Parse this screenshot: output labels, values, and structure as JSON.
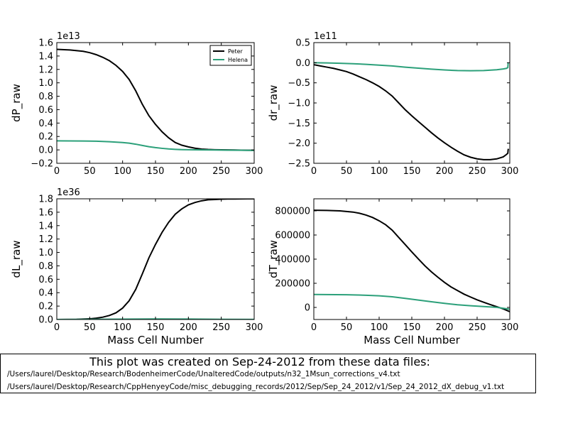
{
  "colors": {
    "peter": "#000000",
    "helena": "#2ca07a"
  },
  "chart_data": [
    {
      "type": "line",
      "ylabel": "dP_raw",
      "xlabel": "",
      "offset_text": "1e13",
      "xlim": [
        0,
        300
      ],
      "ylim": [
        -0.2,
        1.6
      ],
      "xticks": [
        "0",
        "50",
        "100",
        "150",
        "200",
        "250",
        "300"
      ],
      "yticks": [
        "−0.2",
        "0.0",
        "0.2",
        "0.4",
        "0.6",
        "0.8",
        "1.0",
        "1.2",
        "1.4",
        "1.6"
      ],
      "ytick_values": [
        -0.2,
        0.0,
        0.2,
        0.4,
        0.6,
        0.8,
        1.0,
        1.2,
        1.4,
        1.6
      ],
      "legend": {
        "position": "top-right",
        "entries": [
          "Peter",
          "Helena"
        ]
      },
      "series": [
        {
          "name": "Peter",
          "color": "#000000",
          "x": [
            0,
            20,
            40,
            50,
            60,
            70,
            80,
            90,
            100,
            110,
            120,
            130,
            140,
            150,
            160,
            170,
            180,
            190,
            200,
            210,
            220,
            230,
            240,
            250,
            260,
            270,
            280,
            290,
            300
          ],
          "y": [
            1.5,
            1.49,
            1.47,
            1.45,
            1.42,
            1.38,
            1.33,
            1.26,
            1.17,
            1.05,
            0.88,
            0.68,
            0.51,
            0.38,
            0.27,
            0.18,
            0.11,
            0.07,
            0.045,
            0.025,
            0.012,
            0.006,
            0.003,
            0.001,
            0.0,
            -0.002,
            -0.004,
            -0.005,
            -0.006
          ]
        },
        {
          "name": "Helena",
          "color": "#2ca07a",
          "x": [
            0,
            20,
            40,
            60,
            80,
            100,
            110,
            120,
            130,
            140,
            150,
            160,
            170,
            180,
            190,
            200,
            220,
            240,
            260,
            280,
            300
          ],
          "y": [
            0.135,
            0.134,
            0.132,
            0.129,
            0.122,
            0.11,
            0.1,
            0.085,
            0.066,
            0.048,
            0.034,
            0.023,
            0.014,
            0.008,
            0.004,
            0.002,
            0.0,
            -0.002,
            -0.004,
            -0.006,
            -0.008
          ]
        }
      ]
    },
    {
      "type": "line",
      "ylabel": "dr_raw",
      "xlabel": "",
      "offset_text": "1e11",
      "xlim": [
        0,
        300
      ],
      "ylim": [
        -2.5,
        0.5
      ],
      "xticks": [
        "0",
        "50",
        "100",
        "150",
        "200",
        "250",
        "300"
      ],
      "yticks": [
        "−2.5",
        "−2.0",
        "−1.5",
        "−1.0",
        "−0.5",
        "0.0",
        "0.5"
      ],
      "ytick_values": [
        -2.5,
        -2.0,
        -1.5,
        -1.0,
        -0.5,
        0.0,
        0.5
      ],
      "series": [
        {
          "name": "",
          "color": "#000000",
          "x": [
            0,
            10,
            20,
            30,
            40,
            50,
            60,
            70,
            80,
            90,
            100,
            110,
            120,
            130,
            140,
            150,
            160,
            170,
            180,
            190,
            200,
            210,
            220,
            230,
            240,
            250,
            260,
            270,
            280,
            290,
            295,
            297,
            297.5,
            298
          ],
          "y": [
            -0.05,
            -0.08,
            -0.11,
            -0.14,
            -0.18,
            -0.22,
            -0.28,
            -0.35,
            -0.42,
            -0.5,
            -0.59,
            -0.7,
            -0.83,
            -1.0,
            -1.17,
            -1.32,
            -1.46,
            -1.6,
            -1.74,
            -1.87,
            -1.99,
            -2.1,
            -2.2,
            -2.29,
            -2.35,
            -2.39,
            -2.41,
            -2.41,
            -2.39,
            -2.34,
            -2.28,
            -2.25,
            -2.16,
            -2.14
          ]
        },
        {
          "name": "",
          "color": "#2ca07a",
          "x": [
            0,
            20,
            40,
            60,
            80,
            100,
            120,
            140,
            160,
            180,
            200,
            220,
            240,
            260,
            280,
            290,
            295,
            297,
            297.5
          ],
          "y": [
            0.0,
            -0.005,
            -0.015,
            -0.025,
            -0.04,
            -0.06,
            -0.08,
            -0.11,
            -0.135,
            -0.16,
            -0.18,
            -0.195,
            -0.2,
            -0.195,
            -0.175,
            -0.155,
            -0.14,
            -0.12,
            0.0
          ]
        }
      ]
    },
    {
      "type": "line",
      "ylabel": "dL_raw",
      "xlabel": "Mass Cell Number",
      "offset_text": "1e36",
      "xlim": [
        0,
        300
      ],
      "ylim": [
        0.0,
        1.8
      ],
      "xticks": [
        "0",
        "50",
        "100",
        "150",
        "200",
        "250",
        "300"
      ],
      "yticks": [
        "0.0",
        "0.2",
        "0.4",
        "0.6",
        "0.8",
        "1.0",
        "1.2",
        "1.4",
        "1.6",
        "1.8"
      ],
      "ytick_values": [
        0.0,
        0.2,
        0.4,
        0.6,
        0.8,
        1.0,
        1.2,
        1.4,
        1.6,
        1.8
      ],
      "series": [
        {
          "name": "",
          "color": "#000000",
          "x": [
            0,
            30,
            50,
            60,
            70,
            80,
            90,
            100,
            110,
            120,
            130,
            140,
            150,
            160,
            170,
            180,
            190,
            200,
            210,
            220,
            230,
            240,
            250,
            260,
            270,
            280,
            290,
            300
          ],
          "y": [
            0.0,
            0.003,
            0.01,
            0.02,
            0.035,
            0.06,
            0.1,
            0.17,
            0.28,
            0.45,
            0.68,
            0.92,
            1.12,
            1.3,
            1.45,
            1.57,
            1.65,
            1.71,
            1.745,
            1.77,
            1.785,
            1.79,
            1.795,
            1.797,
            1.798,
            1.799,
            1.8,
            1.8
          ]
        },
        {
          "name": "",
          "color": "#2ca07a",
          "x": [
            0,
            50,
            100,
            150,
            200,
            250,
            300
          ],
          "y": [
            0.0,
            0.002,
            0.005,
            0.008,
            0.006,
            0.003,
            0.001
          ]
        }
      ]
    },
    {
      "type": "line",
      "ylabel": "dT_raw",
      "xlabel": "Mass Cell Number",
      "offset_text": "",
      "xlim": [
        0,
        300
      ],
      "ylim": [
        -100000,
        900000
      ],
      "xticks": [
        "0",
        "50",
        "100",
        "150",
        "200",
        "250",
        "300"
      ],
      "yticks": [
        "0",
        "200000",
        "400000",
        "600000",
        "800000"
      ],
      "ytick_values": [
        0,
        200000,
        400000,
        600000,
        800000
      ],
      "series": [
        {
          "name": "",
          "color": "#000000",
          "x": [
            0,
            20,
            40,
            60,
            70,
            80,
            90,
            100,
            110,
            120,
            130,
            140,
            150,
            160,
            170,
            180,
            190,
            200,
            210,
            220,
            230,
            240,
            250,
            260,
            270,
            280,
            290,
            300
          ],
          "y": [
            805000,
            804000,
            800000,
            790000,
            780000,
            765000,
            745000,
            718000,
            685000,
            640000,
            580000,
            520000,
            460000,
            402000,
            345000,
            295000,
            250000,
            208000,
            170000,
            140000,
            110000,
            86000,
            63000,
            43000,
            24000,
            6000,
            -12000,
            -35000
          ]
        },
        {
          "name": "",
          "color": "#2ca07a",
          "x": [
            0,
            50,
            80,
            100,
            120,
            140,
            160,
            180,
            200,
            220,
            240,
            260,
            280,
            300
          ],
          "y": [
            107000,
            105000,
            101000,
            96000,
            88000,
            75000,
            61000,
            47000,
            34000,
            22000,
            14000,
            7000,
            1000,
            -15000
          ]
        }
      ]
    }
  ],
  "caption": {
    "title": "This plot was created on Sep-24-2012 from these data files:",
    "files": [
      "/Users/laurel/Desktop/Research/BodenheimerCode/UnalteredCode/outputs/n32_1Msun_corrections_v4.txt",
      "/Users/laurel/Desktop/Research/CppHenyeyCode/misc_debugging_records/2012/Sep/Sep_24_2012/v1/Sep_24_2012_dX_debug_v1.txt"
    ]
  }
}
